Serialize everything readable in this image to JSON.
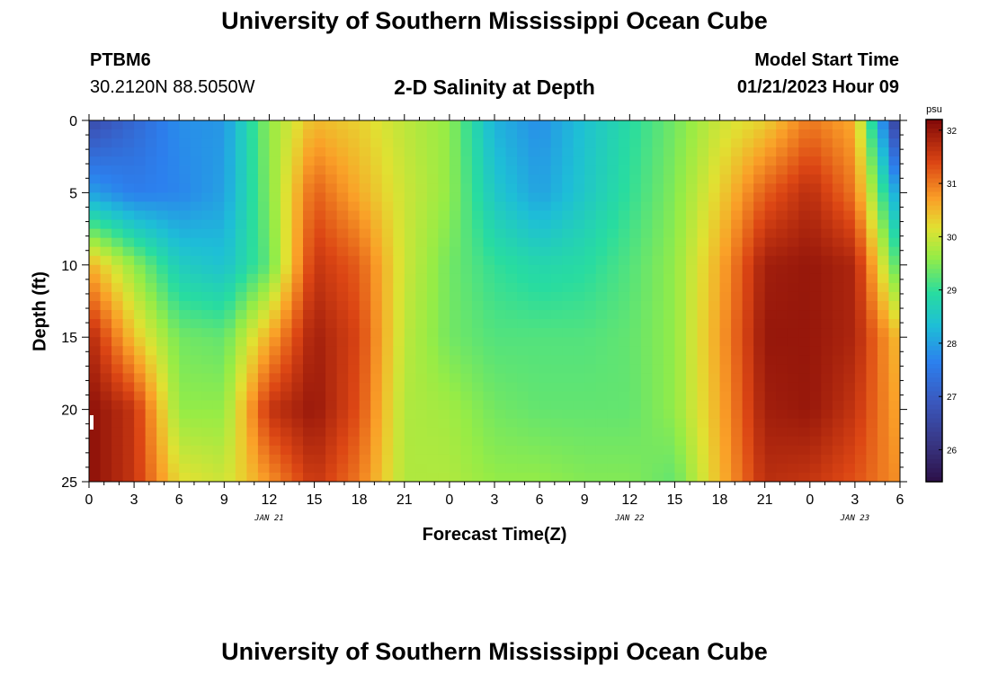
{
  "page": {
    "title_top": "University of Southern Mississippi Ocean Cube",
    "title_bottom": "University of Southern Mississippi Ocean Cube",
    "station": "PTBM6",
    "location": "30.2120N  88.5050W",
    "plot_title": "2-D Salinity at Depth",
    "model_label": "Model Start Time",
    "model_time": "01/21/2023 Hour 09"
  },
  "chart_data": {
    "type": "heatmap",
    "title": "2-D Salinity at Depth",
    "xlabel": "Forecast Time(Z)",
    "ylabel": "Depth (ft)",
    "xlim": [
      0,
      54
    ],
    "ylim": [
      25,
      0
    ],
    "x_tick_values": [
      0,
      3,
      6,
      9,
      12,
      15,
      18,
      21,
      24,
      27,
      30,
      33,
      36,
      39,
      42,
      45,
      48,
      51,
      54
    ],
    "x_tick_labels": [
      "0",
      "3",
      "6",
      "9",
      "12",
      "15",
      "18",
      "21",
      "0",
      "3",
      "6",
      "9",
      "12",
      "15",
      "18",
      "21",
      "0",
      "3",
      "6"
    ],
    "y_tick_values": [
      0,
      5,
      10,
      15,
      20,
      25
    ],
    "y_tick_labels": [
      "0",
      "5",
      "10",
      "15",
      "20",
      "25"
    ],
    "date_labels": [
      {
        "x": 12,
        "text": "JAN 21"
      },
      {
        "x": 36,
        "text": "JAN 22"
      },
      {
        "x": 51,
        "text": "JAN 23"
      }
    ],
    "colorbar": {
      "unit": "psu",
      "vmin": 25.4,
      "vmax": 32.2,
      "ticks": [
        26,
        27,
        28,
        29,
        30,
        31,
        32
      ]
    },
    "depths_ft": [
      0,
      5,
      10,
      15,
      20,
      25
    ],
    "hours": [
      0,
      3,
      6,
      9,
      12,
      15,
      18,
      21,
      24,
      27,
      30,
      33,
      36,
      39,
      42,
      45,
      48,
      51,
      54
    ],
    "salinity_psu": [
      [
        26.6,
        27.2,
        27.8,
        27.9,
        29.6,
        30.5,
        30.3,
        29.9,
        29.6,
        28.2,
        27.8,
        28.4,
        28.9,
        29.4,
        30.0,
        30.3,
        31.0,
        30.6,
        26.0
      ],
      [
        28.0,
        27.6,
        27.7,
        28.0,
        29.5,
        31.2,
        30.6,
        30.0,
        29.6,
        28.5,
        28.0,
        28.5,
        29.0,
        29.5,
        30.3,
        31.2,
        31.7,
        31.0,
        27.8
      ],
      [
        30.6,
        29.6,
        28.6,
        28.4,
        29.3,
        31.6,
        31.2,
        30.0,
        29.4,
        29.0,
        28.8,
        28.9,
        29.2,
        29.6,
        30.6,
        31.9,
        32.0,
        31.8,
        29.0
      ],
      [
        31.8,
        30.4,
        29.4,
        29.3,
        30.6,
        31.9,
        31.4,
        29.9,
        29.4,
        29.2,
        29.2,
        29.2,
        29.3,
        29.6,
        30.7,
        32.0,
        32.0,
        31.8,
        30.4
      ],
      [
        32.1,
        31.6,
        29.6,
        29.6,
        31.6,
        32.0,
        31.3,
        29.8,
        29.7,
        29.4,
        29.3,
        29.3,
        29.3,
        29.6,
        30.6,
        31.9,
        32.0,
        31.6,
        30.6
      ],
      [
        32.1,
        31.6,
        30.2,
        30.0,
        30.8,
        31.6,
        31.0,
        29.8,
        29.8,
        29.6,
        29.6,
        29.5,
        29.5,
        29.3,
        30.5,
        31.7,
        31.6,
        31.3,
        30.8
      ]
    ]
  }
}
